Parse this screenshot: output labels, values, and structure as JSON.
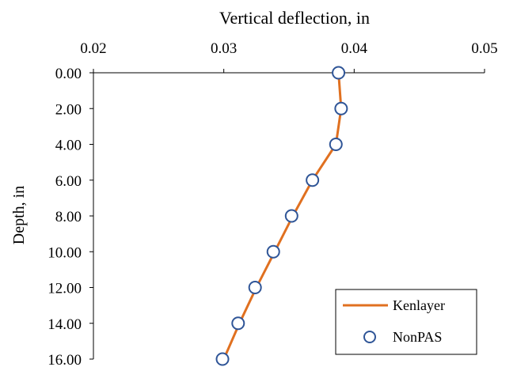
{
  "chart_data": {
    "type": "line",
    "title": "",
    "xlabel": "Vertical deflection, in",
    "ylabel": "Depth, in",
    "xlim": [
      0.02,
      0.05
    ],
    "ylim": [
      0,
      16
    ],
    "x_axis_position": "top",
    "y_axis_inverted": true,
    "xticks": [
      "0.02",
      "0.03",
      "0.04",
      "0.05"
    ],
    "yticks": [
      "0.00",
      "2.00",
      "4.00",
      "6.00",
      "8.00",
      "10.00",
      "12.00",
      "14.00",
      "16.00"
    ],
    "grid": false,
    "legend_position": "bottom-right",
    "series": [
      {
        "name": "Kenlayer",
        "style": "line",
        "color": "#E07020",
        "points": [
          {
            "x": 0.0388,
            "y": 0
          },
          {
            "x": 0.039,
            "y": 2
          },
          {
            "x": 0.0386,
            "y": 4
          },
          {
            "x": 0.0368,
            "y": 6
          },
          {
            "x": 0.0353,
            "y": 8
          },
          {
            "x": 0.0339,
            "y": 10
          },
          {
            "x": 0.0325,
            "y": 12
          },
          {
            "x": 0.0312,
            "y": 14
          },
          {
            "x": 0.03,
            "y": 16
          }
        ]
      },
      {
        "name": "NonPAS",
        "style": "marker",
        "color": "#2F5597",
        "points": [
          {
            "x": 0.0388,
            "y": 0
          },
          {
            "x": 0.039,
            "y": 2
          },
          {
            "x": 0.0386,
            "y": 4
          },
          {
            "x": 0.0368,
            "y": 6
          },
          {
            "x": 0.0352,
            "y": 8
          },
          {
            "x": 0.0338,
            "y": 10
          },
          {
            "x": 0.0324,
            "y": 12
          },
          {
            "x": 0.0311,
            "y": 14
          },
          {
            "x": 0.0299,
            "y": 16
          }
        ]
      }
    ]
  }
}
